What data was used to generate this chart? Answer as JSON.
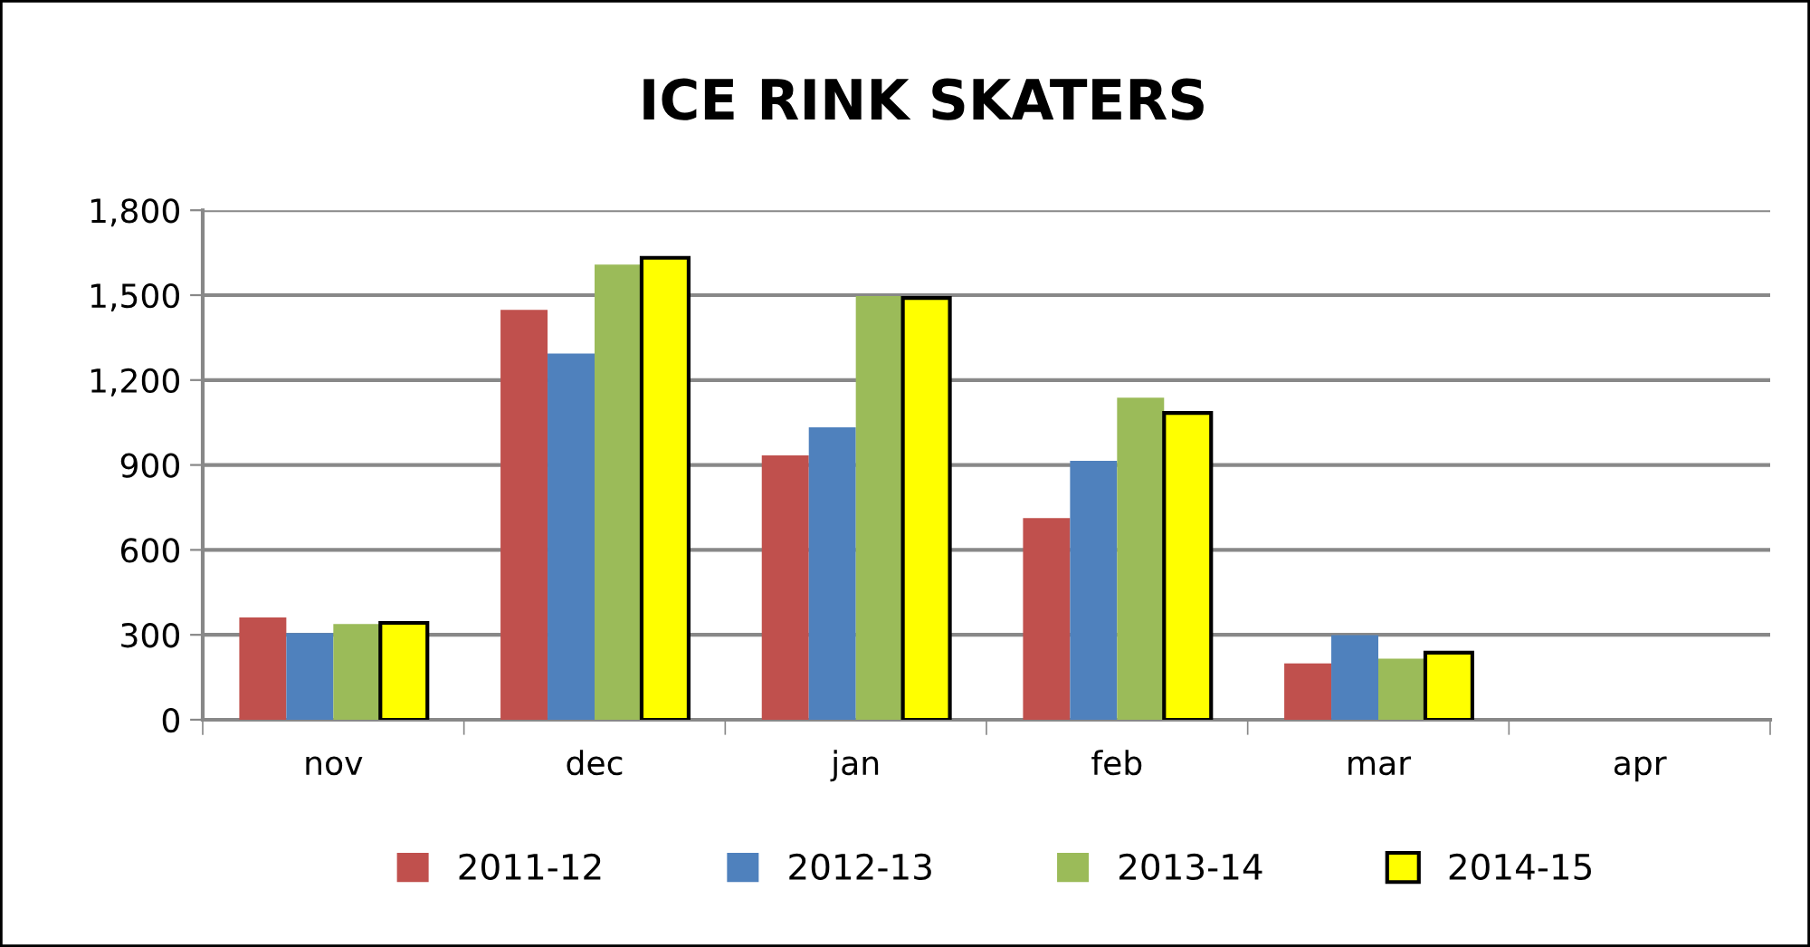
{
  "chart_data": {
    "type": "bar",
    "title": "ICE RINK SKATERS",
    "categories": [
      "nov",
      "dec",
      "jan",
      "feb",
      "mar",
      "apr"
    ],
    "series": [
      {
        "name": "2011-12",
        "color": "#c0504d",
        "values": [
          361,
          1448,
          934,
          712,
          199,
          null
        ]
      },
      {
        "name": "2012-13",
        "color": "#4f81bd",
        "values": [
          306,
          1294,
          1033,
          915,
          299,
          null
        ]
      },
      {
        "name": "2013-14",
        "color": "#9bbb59",
        "values": [
          338,
          1608,
          1497,
          1138,
          216,
          null
        ]
      },
      {
        "name": "2014-15",
        "color": "#ffff00",
        "values": [
          342,
          1632,
          1490,
          1084,
          237,
          null
        ]
      }
    ],
    "ylim": [
      0,
      1800
    ],
    "yticks": [
      {
        "value": 0,
        "label": "0"
      },
      {
        "value": 300,
        "label": "300"
      },
      {
        "value": 600,
        "label": "600"
      },
      {
        "value": 900,
        "label": "900"
      },
      {
        "value": 1200,
        "label": "1,200"
      },
      {
        "value": 1500,
        "label": "1,500"
      },
      {
        "value": 1800,
        "label": "1,800"
      }
    ],
    "grid": "y",
    "legend": "bottom"
  }
}
